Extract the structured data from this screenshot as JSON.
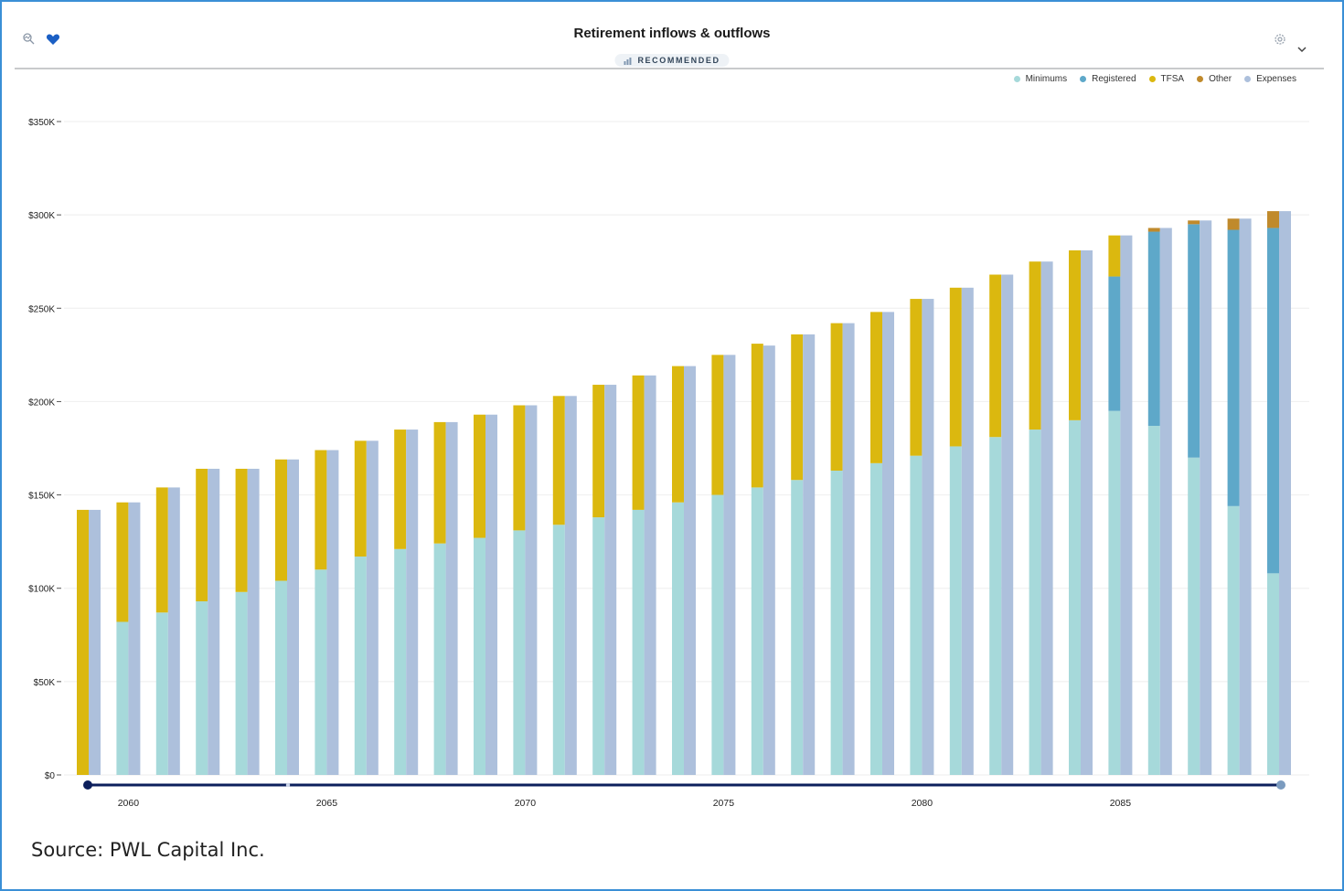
{
  "header": {
    "title": "Retirement inflows & outflows",
    "badge": "RECOMMENDED"
  },
  "icons": {
    "left": [
      "search-compare-icon",
      "heart-icon"
    ],
    "right": [
      "settings-icon",
      "chevron-down-icon"
    ]
  },
  "source": "Source: PWL Capital Inc.",
  "colors": {
    "Minimums": "#a6d9da",
    "Registered": "#5ea8c9",
    "TFSA": "#dbb80f",
    "Other": "#c08a2c",
    "Expenses": "#adc0dc",
    "slider": "#0c1f5c"
  },
  "chart_data": {
    "type": "bar",
    "title": "Retirement inflows & outflows",
    "xlabel": "",
    "ylabel": "",
    "ylim": [
      0,
      350000
    ],
    "yticks": [
      0,
      50000,
      100000,
      150000,
      200000,
      250000,
      300000,
      350000
    ],
    "ytick_labels": [
      "$0",
      "$50K",
      "$100K",
      "$150K",
      "$200K",
      "$250K",
      "$300K",
      "$350K"
    ],
    "xtick_labels": [
      "2060",
      "2065",
      "2070",
      "2075",
      "2080",
      "2085"
    ],
    "grid": true,
    "legend_position": "top-right",
    "stacked_series": [
      "Minimums",
      "Registered",
      "TFSA",
      "Other"
    ],
    "side_series": "Expenses",
    "years": [
      2059,
      2060,
      2061,
      2062,
      2063,
      2064,
      2065,
      2066,
      2067,
      2068,
      2069,
      2070,
      2071,
      2072,
      2073,
      2074,
      2075,
      2076,
      2077,
      2078,
      2079,
      2080,
      2081,
      2082,
      2083,
      2084,
      2085,
      2086,
      2087,
      2088,
      2089
    ],
    "series": [
      {
        "name": "Minimums",
        "values": [
          0,
          82000,
          87000,
          93000,
          98000,
          104000,
          110000,
          117000,
          121000,
          124000,
          127000,
          131000,
          134000,
          138000,
          142000,
          146000,
          150000,
          154000,
          158000,
          163000,
          167000,
          171000,
          176000,
          181000,
          185000,
          190000,
          195000,
          187000,
          170000,
          144000,
          108000
        ]
      },
      {
        "name": "Registered",
        "values": [
          0,
          0,
          0,
          0,
          0,
          0,
          0,
          0,
          0,
          0,
          0,
          0,
          0,
          0,
          0,
          0,
          0,
          0,
          0,
          0,
          0,
          0,
          0,
          0,
          0,
          0,
          72000,
          104000,
          125000,
          148000,
          185000
        ]
      },
      {
        "name": "TFSA",
        "values": [
          142000,
          64000,
          67000,
          71000,
          66000,
          65000,
          64000,
          62000,
          64000,
          65000,
          66000,
          67000,
          69000,
          71000,
          72000,
          73000,
          75000,
          77000,
          78000,
          79000,
          81000,
          84000,
          85000,
          87000,
          90000,
          91000,
          22000,
          0,
          0,
          0,
          0
        ]
      },
      {
        "name": "Other",
        "values": [
          0,
          0,
          0,
          0,
          0,
          0,
          0,
          0,
          0,
          0,
          0,
          0,
          0,
          0,
          0,
          0,
          0,
          0,
          0,
          0,
          0,
          0,
          0,
          0,
          0,
          0,
          0,
          2000,
          2000,
          6000,
          9000
        ]
      },
      {
        "name": "Expenses",
        "values": [
          142000,
          146000,
          154000,
          164000,
          164000,
          169000,
          174000,
          179000,
          185000,
          189000,
          193000,
          198000,
          203000,
          209000,
          214000,
          219000,
          225000,
          230000,
          236000,
          242000,
          248000,
          255000,
          261000,
          268000,
          275000,
          281000,
          289000,
          293000,
          297000,
          298000,
          302000
        ]
      }
    ]
  }
}
